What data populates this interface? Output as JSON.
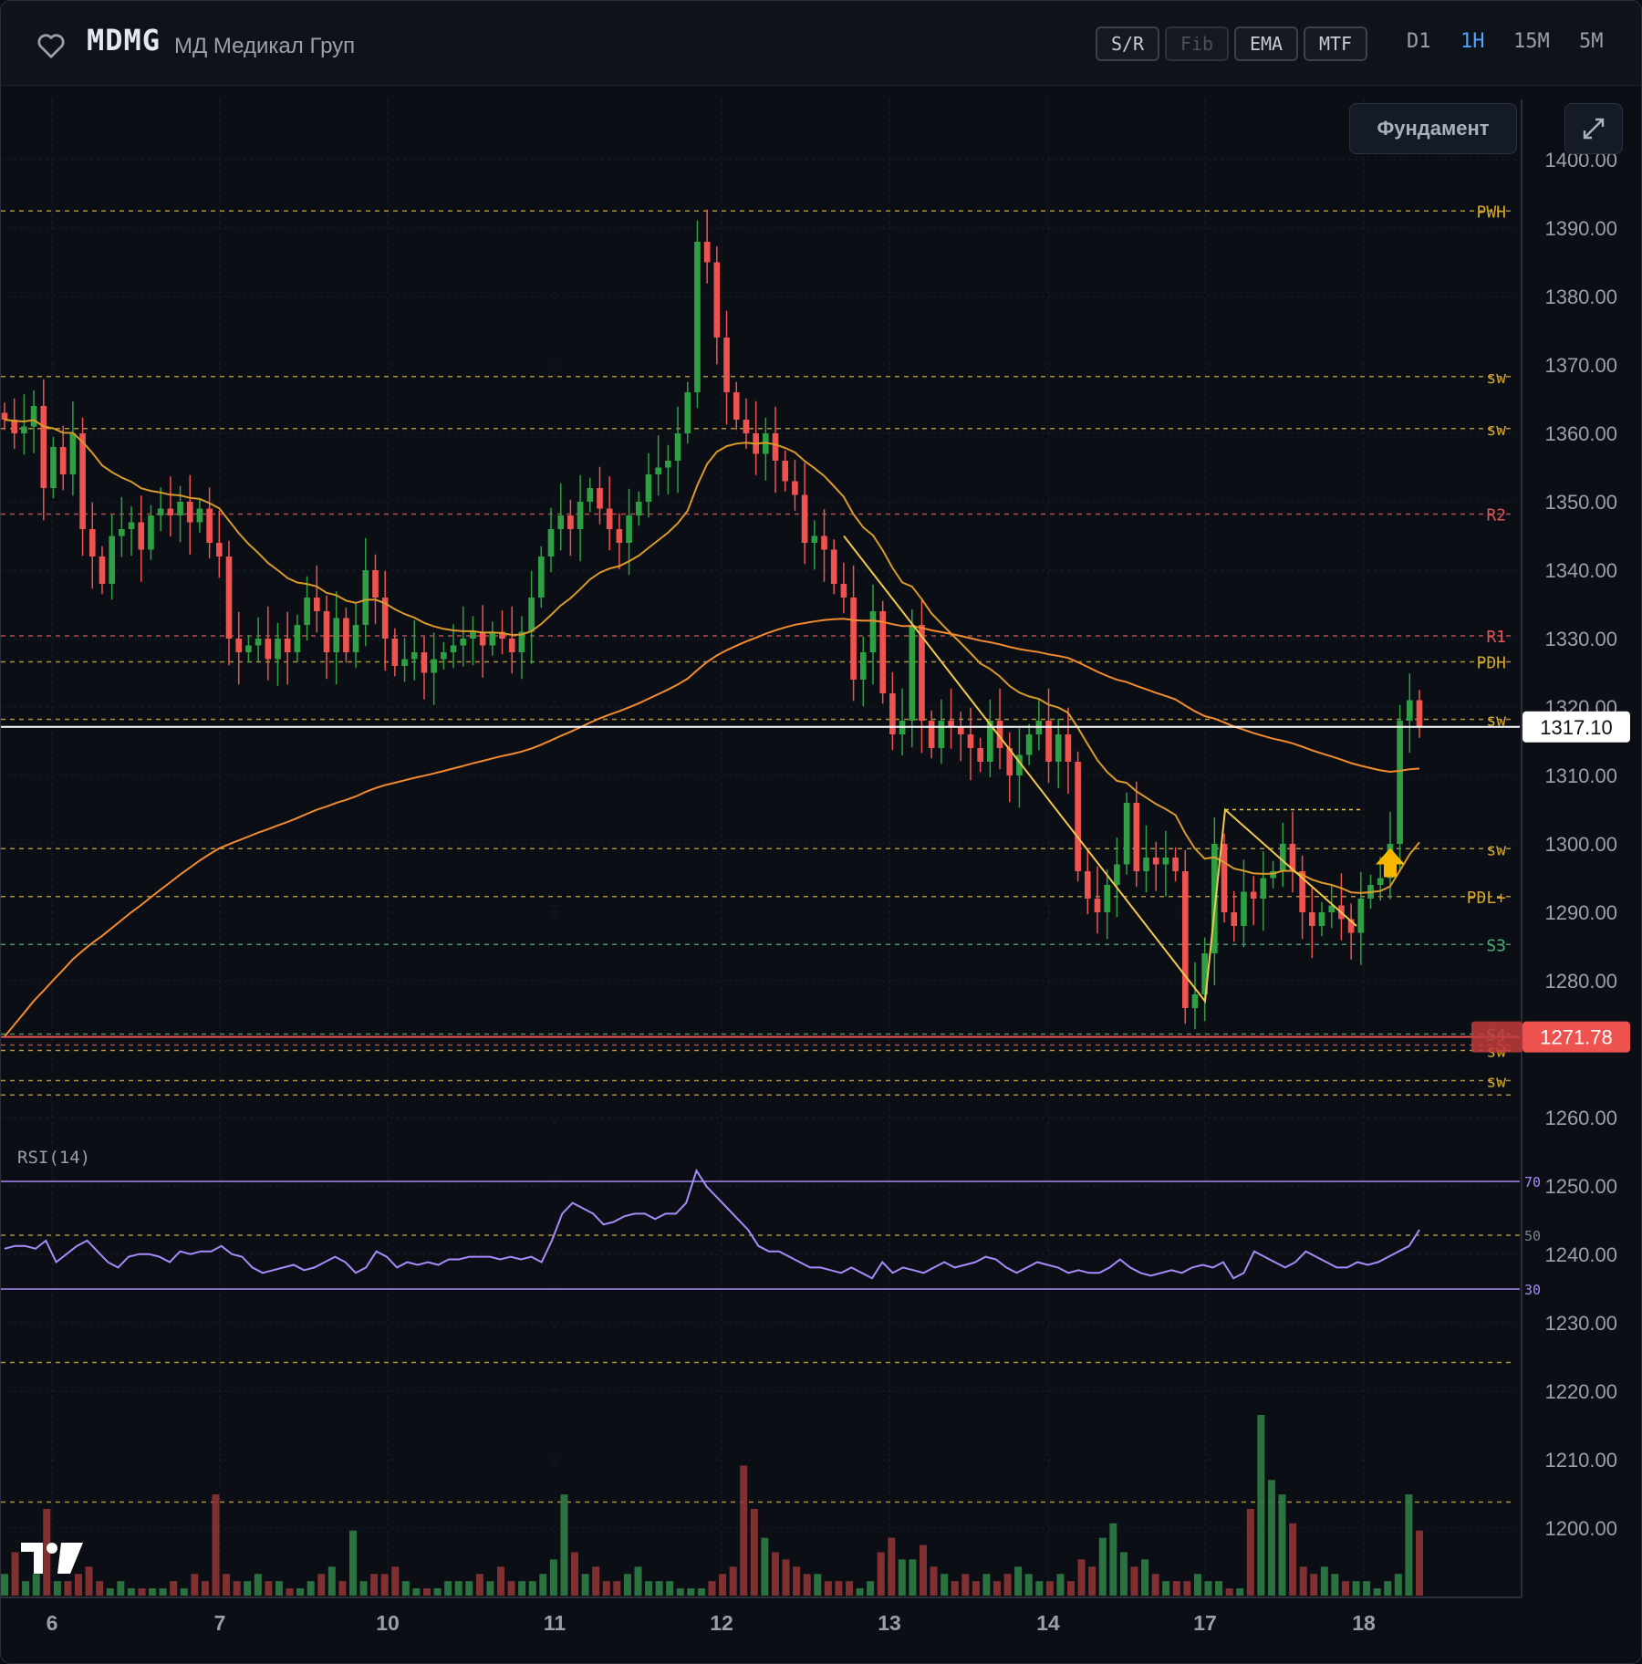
{
  "header": {
    "ticker": "MDMG",
    "company": "МД Медикал Груп",
    "toggles": [
      "S/R",
      "Fib",
      "EMA",
      "MTF"
    ],
    "timeframes": [
      "D1",
      "1H",
      "15M",
      "5M"
    ],
    "active_timeframe": "1H"
  },
  "buttons": {
    "fundament": "Фундамент"
  },
  "indicator": {
    "rsi_label": "RSI(14)",
    "rsi_levels": [
      "70",
      "50",
      "30"
    ]
  },
  "colors": {
    "up": "#2ea043",
    "down": "#ef5350",
    "level_gold": "#d4a72c",
    "level_red": "#e05555",
    "level_green": "#4caf72",
    "rsi": "#a78bfa",
    "ema_fast": "#d99a2b",
    "ema_slow": "#f28b30"
  },
  "chart_data": {
    "type": "candlestick",
    "x_ticks": [
      "6",
      "7",
      "10",
      "11",
      "12",
      "13",
      "14",
      "17",
      "18"
    ],
    "y_ticks": [
      "1400.00",
      "1390.00",
      "1380.00",
      "1370.00",
      "1360.00",
      "1350.00",
      "1340.00",
      "1330.00",
      "1320.00",
      "1310.00",
      "1300.00",
      "1290.00",
      "1280.00",
      "1260.00",
      "1250.00",
      "1240.00",
      "1230.00",
      "1220.00",
      "1210.00",
      "1200.00"
    ],
    "ylim": [
      1190,
      1405
    ],
    "last_price": "1317.10",
    "alert_price": "1271.78",
    "levels": [
      {
        "label": "PWH",
        "value": 1392.5,
        "kind": "gold"
      },
      {
        "label": "sw",
        "value": 1368.3,
        "kind": "gold"
      },
      {
        "label": "sw",
        "value": 1360.7,
        "kind": "gold"
      },
      {
        "label": "R2",
        "value": 1348.2,
        "kind": "red"
      },
      {
        "label": "R1",
        "value": 1330.4,
        "kind": "red"
      },
      {
        "label": "PDH",
        "value": 1326.6,
        "kind": "gold"
      },
      {
        "label": "sw",
        "value": 1318.2,
        "kind": "gold"
      },
      {
        "label": "sw",
        "value": 1299.3,
        "kind": "gold"
      },
      {
        "label": "PDL+",
        "value": 1292.3,
        "kind": "gold"
      },
      {
        "label": "S3",
        "value": 1285.3,
        "kind": "green"
      },
      {
        "label": "S4",
        "value": 1272.2,
        "kind": "green"
      },
      {
        "label": "S",
        "value": 1270.6,
        "kind": "red"
      },
      {
        "label": "sw",
        "value": 1269.8,
        "kind": "gold"
      },
      {
        "label": "sw",
        "value": 1265.4,
        "kind": "gold"
      },
      {
        "value": 1263.3,
        "kind": "gold"
      },
      {
        "value": 1224.2,
        "kind": "gold"
      },
      {
        "value": 1203.8,
        "kind": "gold"
      }
    ],
    "close_path": [
      1362,
      1360,
      1361,
      1364,
      1352,
      1358,
      1354,
      1360,
      1346,
      1342,
      1338,
      1345,
      1346,
      1347,
      1343,
      1348,
      1349,
      1348,
      1350,
      1347,
      1349,
      1344,
      1342,
      1330,
      1328,
      1329,
      1330,
      1327,
      1330,
      1328,
      1332,
      1336,
      1334,
      1328,
      1333,
      1328,
      1332,
      1340,
      1336,
      1330,
      1326,
      1327,
      1328,
      1325,
      1327,
      1328,
      1329,
      1330,
      1331,
      1329,
      1331,
      1330,
      1328,
      1331,
      1336,
      1342,
      1346,
      1348,
      1346,
      1350,
      1352,
      1349,
      1346,
      1344,
      1348,
      1350,
      1354,
      1355,
      1356,
      1360,
      1366,
      1388,
      1385,
      1374,
      1366,
      1362,
      1360,
      1357,
      1360,
      1356,
      1353,
      1351,
      1344,
      1345,
      1343,
      1338,
      1336,
      1324,
      1328,
      1334,
      1322,
      1316,
      1318,
      1332,
      1318,
      1314,
      1318,
      1317,
      1316,
      1314,
      1312,
      1318,
      1314,
      1310,
      1313,
      1316,
      1318,
      1312,
      1316,
      1312,
      1296,
      1292,
      1290,
      1294,
      1297,
      1306,
      1296,
      1298,
      1297,
      1298,
      1296,
      1276,
      1278,
      1284,
      1300,
      1290,
      1288,
      1293,
      1292,
      1295,
      1296,
      1300,
      1296,
      1290,
      1288,
      1290,
      1291,
      1289,
      1287,
      1292,
      1294,
      1295,
      1300,
      1318,
      1321,
      1317
    ],
    "volume": [
      3,
      6,
      2,
      3,
      12,
      2,
      2,
      3,
      4,
      2,
      1,
      2,
      1,
      1,
      1,
      1,
      2,
      1,
      3,
      2,
      14,
      3,
      2,
      2,
      3,
      2,
      2,
      1,
      1,
      2,
      3,
      4,
      2,
      9,
      2,
      3,
      3,
      4,
      2,
      1,
      1,
      1,
      2,
      2,
      2,
      3,
      2,
      4,
      2,
      2,
      2,
      3,
      5,
      14,
      6,
      3,
      4,
      2,
      2,
      3,
      4,
      2,
      2,
      2,
      1,
      1,
      1,
      2,
      3,
      4,
      18,
      12,
      8,
      6,
      5,
      4,
      3,
      3,
      2,
      2,
      2,
      1,
      2,
      6,
      8,
      5,
      5,
      7,
      4,
      3,
      2,
      3,
      2,
      3,
      2,
      3,
      4,
      3,
      2,
      2,
      3,
      2,
      5,
      4,
      8,
      10,
      6,
      4,
      5,
      3,
      2,
      2,
      2,
      3,
      2,
      2,
      1,
      1,
      12,
      25,
      16,
      14,
      10,
      4,
      3,
      4,
      3,
      2,
      2,
      2,
      1,
      2,
      3,
      14,
      9
    ],
    "rsi": [
      45,
      46,
      46,
      45,
      48,
      40,
      43,
      46,
      48,
      44,
      40,
      38,
      42,
      43,
      43,
      42,
      40,
      44,
      43,
      44,
      44,
      46,
      43,
      42,
      38,
      36,
      37,
      38,
      39,
      37,
      38,
      40,
      42,
      40,
      36,
      38,
      44,
      42,
      38,
      40,
      39,
      40,
      39,
      41,
      41,
      42,
      42,
      42,
      41,
      42,
      41,
      42,
      40,
      48,
      58,
      62,
      60,
      58,
      54,
      55,
      57,
      58,
      58,
      56,
      58,
      58,
      62,
      74,
      68,
      64,
      60,
      56,
      52,
      46,
      44,
      44,
      42,
      40,
      38,
      38,
      37,
      36,
      38,
      36,
      34,
      40,
      36,
      38,
      37,
      36,
      38,
      40,
      38,
      39,
      40,
      42,
      41,
      38,
      36,
      38,
      40,
      39,
      38,
      36,
      37,
      36,
      36,
      38,
      41,
      38,
      36,
      35,
      36,
      37,
      36,
      38,
      39,
      38,
      40,
      34,
      36,
      44,
      42,
      40,
      38,
      40,
      44,
      42,
      40,
      38,
      38,
      40,
      39,
      40,
      42,
      44,
      46,
      52
    ]
  }
}
